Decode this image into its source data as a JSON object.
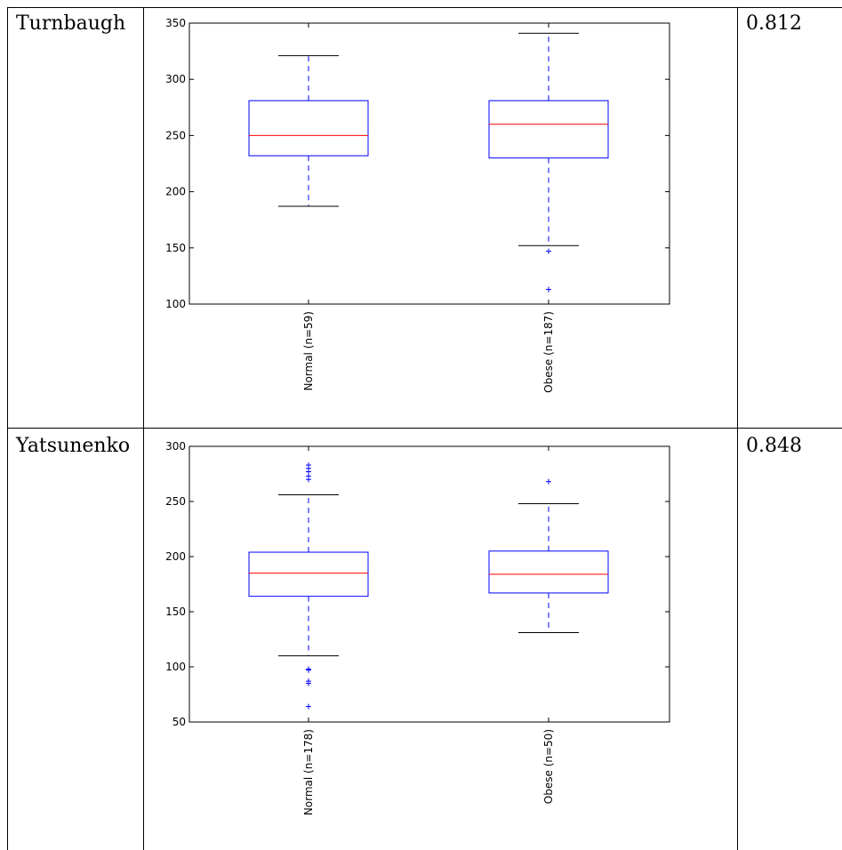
{
  "rows": [
    {
      "name": "Turnbaugh",
      "value": "0.812"
    },
    {
      "name": "Yatsunenko",
      "value": "0.848"
    }
  ],
  "chart_data": [
    {
      "type": "box",
      "ylim": [
        100,
        350
      ],
      "yticks": [
        100,
        150,
        200,
        250,
        300,
        350
      ],
      "categories": [
        "Normal (n=59)",
        "Obese (n=187)"
      ],
      "boxes": [
        {
          "whisker_low": 187,
          "q1": 232,
          "median": 250,
          "q3": 281,
          "whisker_high": 321,
          "outliers": []
        },
        {
          "whisker_low": 152,
          "q1": 230,
          "median": 260,
          "q3": 281,
          "whisker_high": 341,
          "outliers": [
            147,
            113
          ]
        }
      ],
      "colors": {
        "box": "#0000ff",
        "median": "#ff0000",
        "whisker_cap": "#000000",
        "outlier": "#0000ff"
      }
    },
    {
      "type": "box",
      "ylim": [
        50,
        300
      ],
      "yticks": [
        50,
        100,
        150,
        200,
        250,
        300
      ],
      "categories": [
        "Normal (n=178)",
        "Obese (n=50)"
      ],
      "boxes": [
        {
          "whisker_low": 110,
          "q1": 164,
          "median": 185,
          "q3": 204,
          "whisker_high": 256,
          "outliers": [
            283,
            280,
            277,
            273,
            270,
            98,
            97,
            87,
            85,
            64
          ]
        },
        {
          "whisker_low": 131,
          "q1": 167,
          "median": 184,
          "q3": 205,
          "whisker_high": 248,
          "outliers": [
            268
          ]
        }
      ],
      "colors": {
        "box": "#0000ff",
        "median": "#ff0000",
        "whisker_cap": "#000000",
        "outlier": "#0000ff"
      }
    }
  ]
}
